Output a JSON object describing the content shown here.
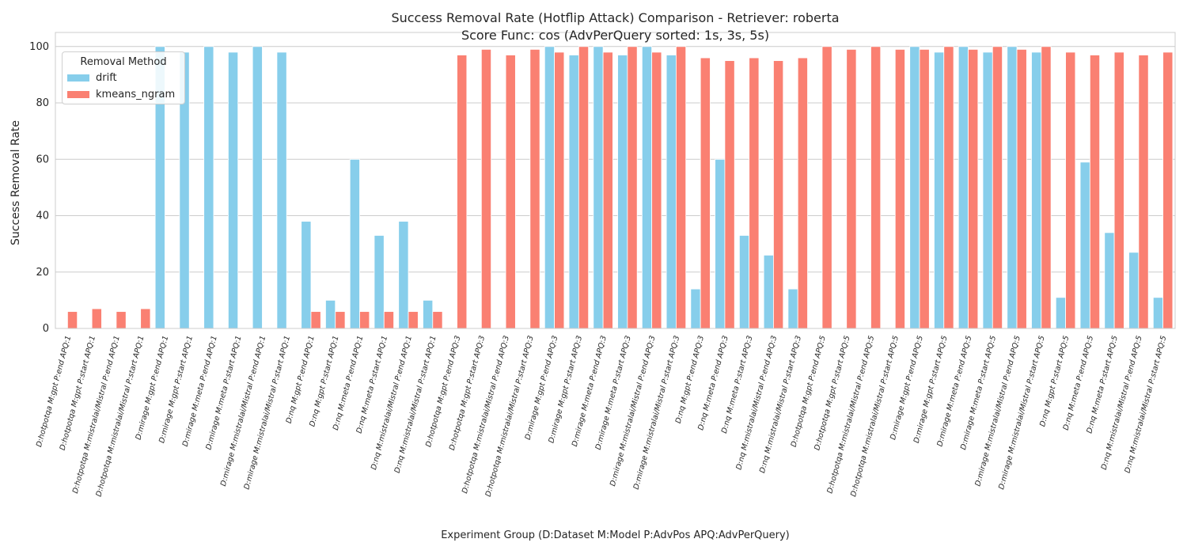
{
  "chart_data": {
    "type": "bar",
    "title_line1": "Success Removal Rate (Hotflip Attack) Comparison - Retriever: roberta",
    "title_line2": "Score Func: cos (AdvPerQuery sorted: 1s, 3s, 5s)",
    "xlabel": "Experiment Group (D:Dataset M:Model P:AdvPos APQ:AdvPerQuery)",
    "ylabel": "Success Removal Rate",
    "ylim": [
      0,
      105
    ],
    "yticks": [
      0,
      20,
      40,
      60,
      80,
      100
    ],
    "grid": true,
    "legend": {
      "title": "Removal Method",
      "placement": "top-left"
    },
    "categories": [
      "D:hotpotqa M:gpt P:end APQ:1",
      "D:hotpotqa M:gpt P:start APQ:1",
      "D:hotpotqa M:mistralai/Mistral P:end APQ:1",
      "D:hotpotqa M:mistralai/Mistral P:start APQ:1",
      "D:mirage M:gpt P:end APQ:1",
      "D:mirage M:gpt P:start APQ:1",
      "D:mirage M:meta P:end APQ:1",
      "D:mirage M:meta P:start APQ:1",
      "D:mirage M:mistralai/Mistral P:end APQ:1",
      "D:mirage M:mistralai/Mistral P:start APQ:1",
      "D:nq M:gpt P:end APQ:1",
      "D:nq M:gpt P:start APQ:1",
      "D:nq M:meta P:end APQ:1",
      "D:nq M:meta P:start APQ:1",
      "D:nq M:mistralai/Mistral P:end APQ:1",
      "D:nq M:mistralai/Mistral P:start APQ:1",
      "D:hotpotqa M:gpt P:end APQ:3",
      "D:hotpotqa M:gpt P:start APQ:3",
      "D:hotpotqa M:mistralai/Mistral P:end APQ:3",
      "D:hotpotqa M:mistralai/Mistral P:start APQ:3",
      "D:mirage M:gpt P:end APQ:3",
      "D:mirage M:gpt P:start APQ:3",
      "D:mirage M:meta P:end APQ:3",
      "D:mirage M:meta P:start APQ:3",
      "D:mirage M:mistralai/Mistral P:end APQ:3",
      "D:mirage M:mistralai/Mistral P:start APQ:3",
      "D:nq M:gpt P:end APQ:3",
      "D:nq M:meta P:end APQ:3",
      "D:nq M:meta P:start APQ:3",
      "D:nq M:mistralai/Mistral P:end APQ:3",
      "D:nq M:mistralai/Mistral P:start APQ:3",
      "D:hotpotqa M:gpt P:end APQ:5",
      "D:hotpotqa M:gpt P:start APQ:5",
      "D:hotpotqa M:mistralai/Mistral P:end APQ:5",
      "D:hotpotqa M:mistralai/Mistral P:start APQ:5",
      "D:mirage M:gpt P:end APQ:5",
      "D:mirage M:gpt P:start APQ:5",
      "D:mirage M:meta P:end APQ:5",
      "D:mirage M:meta P:start APQ:5",
      "D:mirage M:mistralai/Mistral P:end APQ:5",
      "D:mirage M:mistralai/Mistral P:start APQ:5",
      "D:nq M:gpt P:start APQ:5",
      "D:nq M:meta P:end APQ:5",
      "D:nq M:meta P:start APQ:5",
      "D:nq M:mistralai/Mistral P:end APQ:5",
      "D:nq M:mistralai/Mistral P:start APQ:5"
    ],
    "series": [
      {
        "name": "drift",
        "color": "#87ceeb",
        "values": [
          null,
          null,
          null,
          null,
          100,
          98,
          100,
          98,
          100,
          98,
          38,
          10,
          60,
          33,
          38,
          10,
          null,
          null,
          null,
          null,
          100,
          97,
          100,
          97,
          100,
          97,
          14,
          60,
          33,
          26,
          14,
          null,
          null,
          null,
          null,
          100,
          98,
          100,
          98,
          100,
          98,
          11,
          59,
          34,
          27,
          11
        ]
      },
      {
        "name": "kmeans_ngram",
        "color": "#fa8072",
        "values": [
          6,
          7,
          6,
          7,
          null,
          null,
          null,
          null,
          null,
          null,
          6,
          6,
          6,
          6,
          6,
          6,
          97,
          99,
          97,
          99,
          98,
          100,
          98,
          100,
          98,
          100,
          96,
          95,
          96,
          95,
          96,
          100,
          99,
          100,
          99,
          99,
          100,
          99,
          100,
          99,
          100,
          98,
          97,
          98,
          97,
          98
        ]
      }
    ]
  }
}
